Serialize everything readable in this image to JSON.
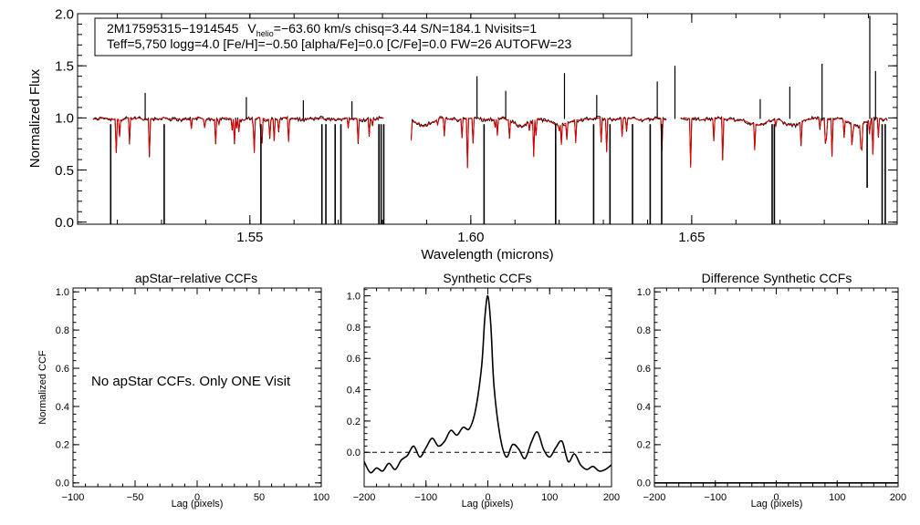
{
  "chart_data": [
    {
      "type": "line",
      "xlabel": "Wavelength (microns)",
      "ylabel": "Normalized Flux",
      "xlim": [
        1.511,
        1.6965
      ],
      "ylim": [
        -0.02,
        2.0
      ],
      "xticks": [
        1.55,
        1.6,
        1.65
      ],
      "xtick_labels": [
        "1.55",
        "1.60",
        "1.65"
      ],
      "yticks": [
        0.0,
        0.5,
        1.0,
        1.5,
        2.0
      ],
      "ytick_labels": [
        "0.0",
        "0.5",
        "1.0",
        "1.5",
        "2.0"
      ],
      "annotation": {
        "line1_star": "2M17595315−1914545",
        "line1_v": "V",
        "line1_sub": "helio",
        "line1_rest": "=−63.60 km/s  chisq=3.44  S/N=184.1  Nvisits=1",
        "line2": "Teff=5,750 logg=4.0 [Fe/H]=−0.50 [alpha/Fe]=0.0 [C/Fe]=0.0 FW=26 AUTOFW=23"
      },
      "chips": [
        [
          1.5145,
          1.5805
        ],
        [
          1.5865,
          1.6445
        ],
        [
          1.6475,
          1.6945
        ]
      ],
      "continuum": 0.99,
      "emission_spikes": [
        [
          1.5263,
          1.24
        ],
        [
          1.5492,
          1.2
        ],
        [
          1.5621,
          1.17
        ],
        [
          1.5731,
          1.16
        ],
        [
          1.6014,
          1.4
        ],
        [
          1.6079,
          1.26
        ],
        [
          1.6212,
          1.43
        ],
        [
          1.6285,
          1.22
        ],
        [
          1.6422,
          1.35
        ],
        [
          1.6462,
          1.5
        ],
        [
          1.6722,
          1.3
        ],
        [
          1.6795,
          1.52
        ],
        [
          1.6903,
          1.98
        ],
        [
          1.6916,
          1.45
        ],
        [
          1.6655,
          1.18
        ]
      ],
      "deep_absorptions": [
        [
          1.5185,
          -0.02
        ],
        [
          1.5306,
          -0.02
        ],
        [
          1.5525,
          -0.02
        ],
        [
          1.5663,
          -0.02
        ],
        [
          1.5672,
          -0.02
        ],
        [
          1.5693,
          -0.02
        ],
        [
          1.5706,
          -0.02
        ],
        [
          1.5792,
          -0.02
        ],
        [
          1.5797,
          -0.02
        ],
        [
          1.5803,
          -0.02
        ],
        [
          1.603,
          -0.02
        ],
        [
          1.6192,
          -0.02
        ],
        [
          1.6278,
          -0.02
        ],
        [
          1.6315,
          -0.02
        ],
        [
          1.6366,
          -0.02
        ],
        [
          1.6406,
          -0.02
        ],
        [
          1.6432,
          -0.02
        ],
        [
          1.6682,
          -0.02
        ],
        [
          1.6687,
          -0.02
        ],
        [
          1.6897,
          0.33
        ],
        [
          1.6931,
          -0.02
        ],
        [
          1.6938,
          -0.02
        ]
      ],
      "series": [
        {
          "color": "#000000",
          "values_desc": ""
        },
        {
          "color": "#dd0000",
          "values_desc": ""
        }
      ]
    },
    {
      "type": "line",
      "title": "apStar−relative CCFs",
      "xlabel": "Lag (pixels)",
      "ylabel": "Normalized CCF",
      "xlim": [
        -100,
        100
      ],
      "ylim": [
        -0.02,
        1.02
      ],
      "xticks": [
        -100,
        -50,
        0,
        50,
        100
      ],
      "xtick_labels": [
        "−100",
        "−50",
        "0",
        "50",
        "100"
      ],
      "yticks": [
        0.0,
        0.2,
        0.4,
        0.6,
        0.8,
        1.0
      ],
      "ytick_labels": [
        "0.0",
        "0.2",
        "0.4",
        "0.6",
        "0.8",
        "1.0"
      ],
      "message": "No apStar CCFs.  Only ONE Visit"
    },
    {
      "type": "line",
      "title": "Synthetic CCFs",
      "xlabel": "Lag (pixels)",
      "xlim": [
        -200,
        200
      ],
      "ylim": [
        -0.22,
        1.05
      ],
      "xticks": [
        -200,
        -100,
        0,
        100,
        200
      ],
      "xtick_labels": [
        "−200",
        "−100",
        "0",
        "100",
        "200"
      ],
      "yticks": [
        0.0,
        0.2,
        0.4,
        0.6,
        0.8,
        1.0
      ],
      "ytick_labels": [
        "0.0",
        "0.2",
        "0.4",
        "0.6",
        "0.8",
        "1.0"
      ],
      "zero_line": 0.0,
      "x": [
        -200,
        -190,
        -180,
        -170,
        -160,
        -150,
        -140,
        -130,
        -120,
        -110,
        -100,
        -90,
        -80,
        -70,
        -60,
        -50,
        -40,
        -30,
        -20,
        -10,
        -5,
        0,
        5,
        10,
        20,
        30,
        40,
        50,
        60,
        70,
        80,
        90,
        100,
        110,
        120,
        130,
        140,
        150,
        160,
        170,
        180,
        190,
        200
      ],
      "y": [
        -0.06,
        -0.13,
        -0.1,
        -0.12,
        -0.07,
        -0.11,
        -0.05,
        -0.02,
        0.04,
        -0.03,
        0.03,
        0.09,
        0.04,
        0.07,
        0.14,
        0.11,
        0.16,
        0.15,
        0.27,
        0.55,
        0.85,
        1.0,
        0.8,
        0.42,
        0.1,
        -0.03,
        0.05,
        0.02,
        -0.04,
        0.06,
        0.13,
        0.02,
        -0.03,
        0.03,
        0.07,
        -0.06,
        -0.01,
        -0.08,
        -0.11,
        -0.09,
        -0.12,
        -0.11,
        -0.08
      ]
    },
    {
      "type": "line",
      "title": "Difference Synthetic CCFs",
      "xlabel": "Lag (pixels)",
      "xlim": [
        -200,
        200
      ],
      "ylim": [
        -0.02,
        1.02
      ],
      "xticks": [
        -200,
        -100,
        0,
        100,
        200
      ],
      "xtick_labels": [
        "−200",
        "−100",
        "0",
        "100",
        "200"
      ],
      "yticks": [
        0.0,
        0.2,
        0.4,
        0.6,
        0.8,
        1.0
      ],
      "ytick_labels": [
        "0.0",
        "0.2",
        "0.4",
        "0.6",
        "0.8",
        "1.0"
      ],
      "x": [
        -200,
        200
      ],
      "y": [
        0.0,
        0.0
      ]
    }
  ]
}
